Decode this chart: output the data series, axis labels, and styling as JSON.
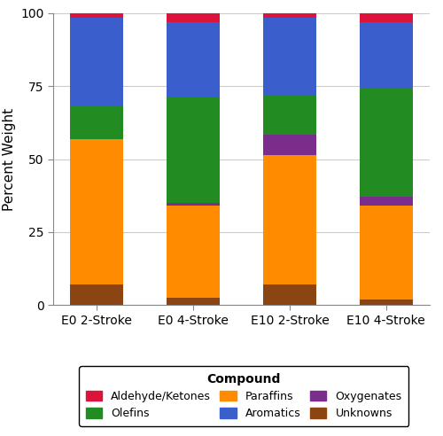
{
  "categories": [
    "E0 2-Stroke",
    "E0 4-Stroke",
    "E10 2-Stroke",
    "E10 4-Stroke"
  ],
  "compounds": [
    "Unknowns",
    "Paraffins",
    "Oxygenates",
    "Olefins",
    "Aromatics",
    "Aldehyde/Ketones"
  ],
  "values": {
    "Unknowns": [
      7.0,
      2.5,
      7.0,
      2.0
    ],
    "Paraffins": [
      50.0,
      31.5,
      44.5,
      32.0
    ],
    "Oxygenates": [
      0.0,
      1.0,
      7.0,
      3.0
    ],
    "Olefins": [
      11.0,
      36.0,
      13.5,
      37.5
    ],
    "Aromatics": [
      30.5,
      26.0,
      26.5,
      22.5
    ],
    "Aldehyde/Ketones": [
      1.5,
      3.0,
      1.5,
      3.0
    ]
  },
  "colors": {
    "Unknowns": "#8B4513",
    "Paraffins": "#FF8C00",
    "Oxygenates": "#7B2D8B",
    "Olefins": "#228B22",
    "Aromatics": "#3A5FCD",
    "Aldehyde/Ketones": "#DC143C"
  },
  "ylabel": "Percent Weight",
  "ylim": [
    0,
    100
  ],
  "legend_title": "Compound",
  "legend_order": [
    "Aldehyde/Ketones",
    "Olefins",
    "Paraffins",
    "Aromatics",
    "Oxygenates",
    "Unknowns"
  ],
  "background_color": "#FFFFFF",
  "grid_color": "#CCCCCC",
  "bar_width": 0.55,
  "figsize": [
    5.0,
    4.92
  ],
  "dpi": 100
}
